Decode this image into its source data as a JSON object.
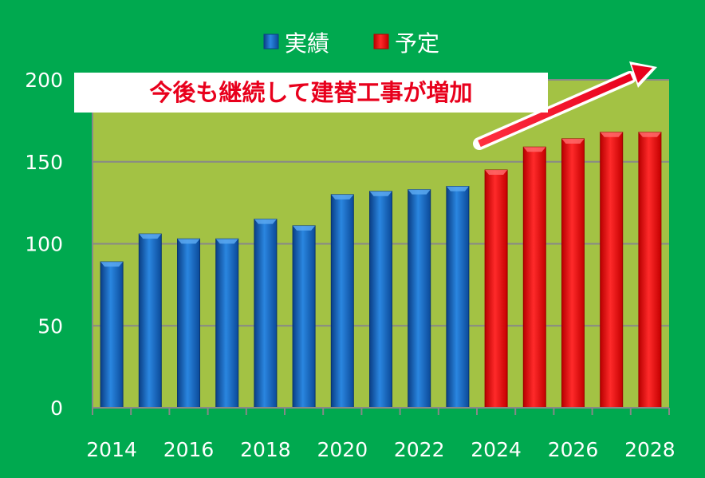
{
  "chart_data": {
    "type": "bar",
    "categories": [
      "2014",
      "2015",
      "2016",
      "2017",
      "2018",
      "2019",
      "2020",
      "2021",
      "2022",
      "2023",
      "2024",
      "2025",
      "2026",
      "2027",
      "2028"
    ],
    "values": [
      89,
      106,
      103,
      103,
      115,
      111,
      130,
      132,
      133,
      135,
      145,
      159,
      164,
      168,
      168
    ],
    "series": [
      {
        "name": "実績",
        "color": "#1560b8",
        "range": [
          0,
          9
        ]
      },
      {
        "name": "予定",
        "color": "#f20000",
        "range": [
          10,
          14
        ]
      }
    ],
    "x_tick_labels": [
      "2014",
      "2016",
      "2018",
      "2020",
      "2022",
      "2024",
      "2026",
      "2028"
    ],
    "y_ticks": [
      0,
      50,
      100,
      150,
      200
    ],
    "ylim": [
      0,
      200
    ],
    "grid": true,
    "legend_position": "top-center",
    "annotation": "今後も継続して建替工事が増加",
    "colors": {
      "background": "#00a94f",
      "plot_area": "#a3c244",
      "gridline": "#888888"
    }
  }
}
